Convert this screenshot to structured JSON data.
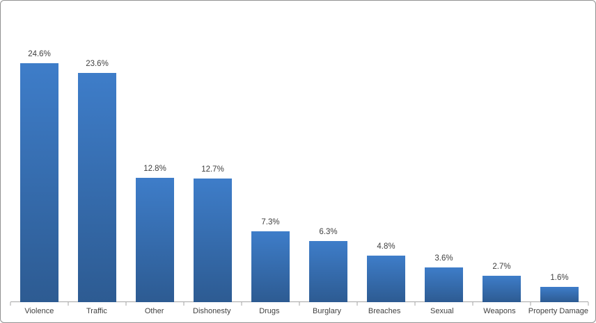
{
  "chart_data": {
    "type": "bar",
    "categories": [
      "Violence",
      "Traffic",
      "Other",
      "Dishonesty",
      "Drugs",
      "Burglary",
      "Breaches",
      "Sexual",
      "Weapons",
      "Property Damage"
    ],
    "values": [
      24.6,
      23.6,
      12.8,
      12.7,
      7.3,
      6.3,
      4.8,
      3.6,
      2.7,
      1.6
    ],
    "value_labels": [
      "24.6%",
      "23.6%",
      "12.8%",
      "12.7%",
      "7.3%",
      "6.3%",
      "4.8%",
      "3.6%",
      "2.7%",
      "1.6%"
    ],
    "title": "",
    "xlabel": "",
    "ylabel": "",
    "ylim": [
      0,
      25
    ],
    "grid": false,
    "legend": false,
    "bar_color_top": "#3e7dc9",
    "bar_color_bottom": "#2d5b92",
    "axis_color": "#a6a6a6",
    "label_color": "#3f3f3f",
    "border_color": "#919191",
    "background": "#ffffff"
  }
}
